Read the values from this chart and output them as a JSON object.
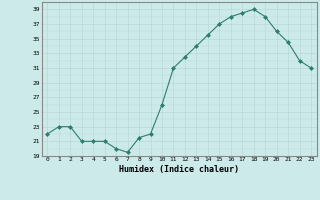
{
  "x": [
    0,
    1,
    2,
    3,
    4,
    5,
    6,
    7,
    8,
    9,
    10,
    11,
    12,
    13,
    14,
    15,
    16,
    17,
    18,
    19,
    20,
    21,
    22,
    23
  ],
  "y": [
    22,
    23,
    23,
    21,
    21,
    21,
    20,
    19.5,
    21.5,
    22,
    26,
    31,
    32.5,
    34,
    35.5,
    37,
    38,
    38.5,
    39,
    38,
    36,
    34.5,
    32,
    31
  ],
  "line_color": "#2e7d6e",
  "marker": "D",
  "marker_size": 2,
  "bg_color": "#cdeaea",
  "grid_major_color": "#b8d8d8",
  "grid_minor_color": "#cde8e8",
  "xlabel": "Humidex (Indice chaleur)",
  "ylim": [
    19,
    40
  ],
  "xlim": [
    -0.5,
    23.5
  ],
  "yticks": [
    19,
    21,
    23,
    25,
    27,
    29,
    31,
    33,
    35,
    37,
    39
  ],
  "xticks": [
    0,
    1,
    2,
    3,
    4,
    5,
    6,
    7,
    8,
    9,
    10,
    11,
    12,
    13,
    14,
    15,
    16,
    17,
    18,
    19,
    20,
    21,
    22,
    23
  ]
}
